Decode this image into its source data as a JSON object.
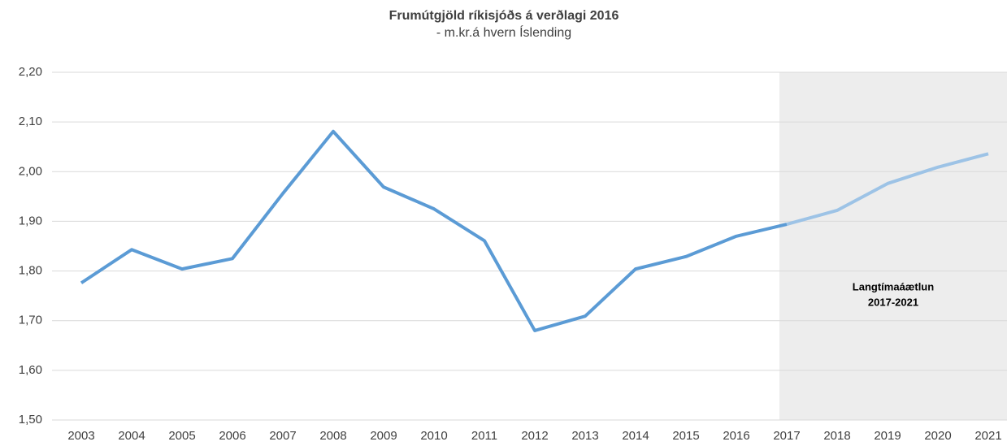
{
  "chart_data": {
    "type": "line",
    "title": "Frumútgjöld ríkisjóðs á verðlagi 2016",
    "subtitle": "- m.kr.á hvern Íslending",
    "categories": [
      "2003",
      "2004",
      "2005",
      "2006",
      "2007",
      "2008",
      "2009",
      "2010",
      "2011",
      "2012",
      "2013",
      "2014",
      "2015",
      "2016",
      "2017",
      "2018",
      "2019",
      "2020",
      "2021"
    ],
    "series": [
      {
        "color": "#5b9bd5",
        "values": [
          1.776,
          1.843,
          1.804,
          1.825,
          1.956,
          2.081,
          1.969,
          1.925,
          1.861,
          1.68,
          1.709,
          1.804,
          1.829,
          1.87,
          1.894,
          null,
          null,
          null,
          null
        ]
      },
      {
        "color": "#9dc3e6",
        "values": [
          null,
          null,
          null,
          null,
          null,
          null,
          null,
          null,
          null,
          null,
          null,
          null,
          null,
          null,
          1.894,
          1.922,
          1.976,
          2.009,
          2.036
        ]
      }
    ],
    "ylim": [
      1.5,
      2.2
    ],
    "yticks": [
      {
        "value": 1.5,
        "label": "1,50"
      },
      {
        "value": 1.6,
        "label": "1,60"
      },
      {
        "value": 1.7,
        "label": "1,70"
      },
      {
        "value": 1.8,
        "label": "1,80"
      },
      {
        "value": 1.9,
        "label": "1,90"
      },
      {
        "value": 2.0,
        "label": "2,00"
      },
      {
        "value": 2.1,
        "label": "2,10"
      },
      {
        "value": 2.2,
        "label": "2,20"
      }
    ],
    "grid": true,
    "shade": {
      "from": "2017",
      "to": "2021",
      "color": "#ededed",
      "lines": [
        "Langtímaáætlun",
        "2017-2021"
      ]
    }
  }
}
